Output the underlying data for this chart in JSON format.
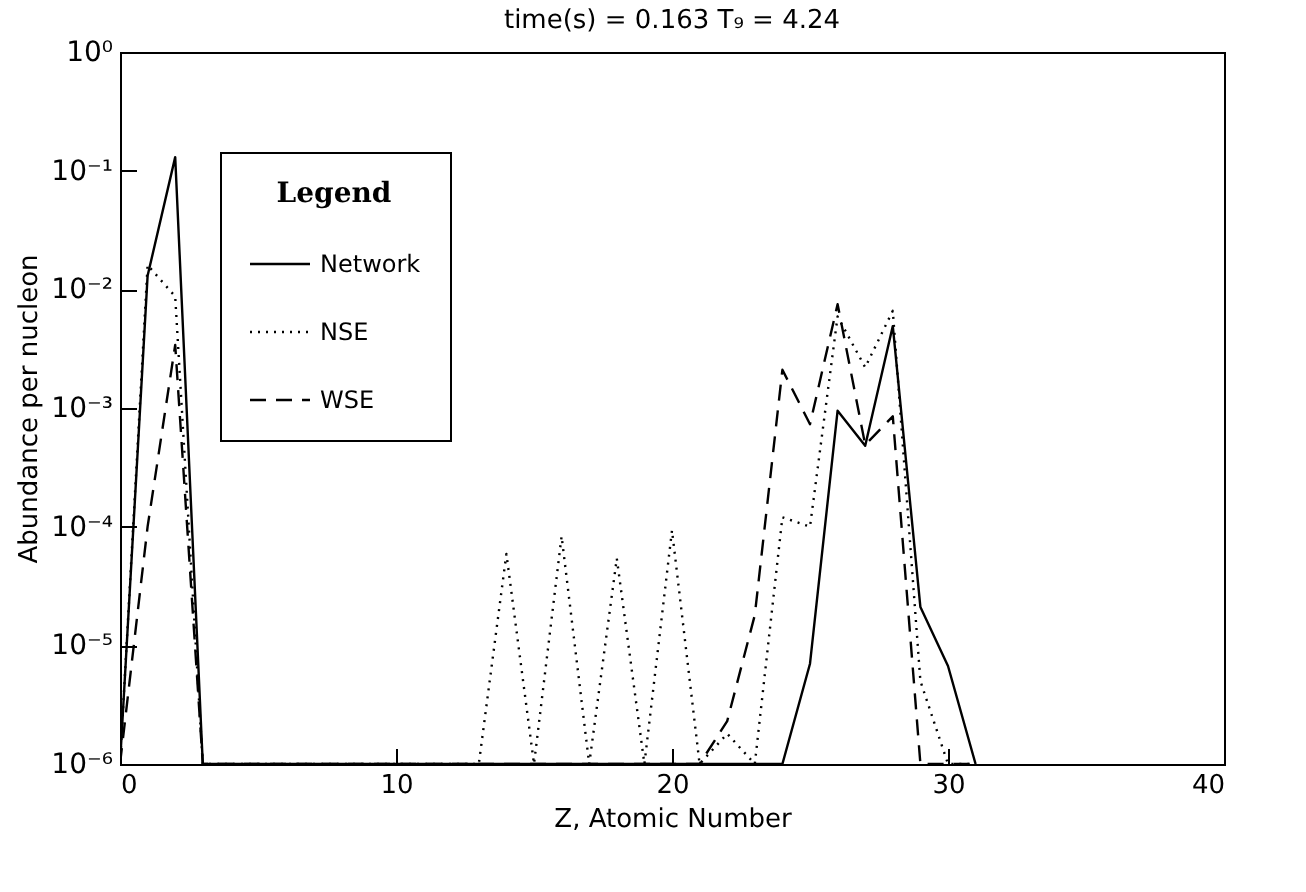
{
  "chart_data": {
    "type": "line",
    "title": "time(s) = 0.163    T₉ = 4.24",
    "xlabel": "Z, Atomic Number",
    "ylabel": "Abundance per nucleon",
    "legend_title": "Legend",
    "legend": "top left",
    "log": "y",
    "x": [
      0,
      1,
      2,
      3,
      4,
      5,
      6,
      7,
      8,
      9,
      10,
      11,
      12,
      13,
      14,
      15,
      16,
      17,
      18,
      19,
      20,
      21,
      22,
      23,
      24,
      25,
      26,
      27,
      28,
      29,
      30,
      31
    ],
    "xlim": [
      0,
      40
    ],
    "xticks": [
      0,
      10,
      20,
      30,
      40
    ],
    "ylim": [
      1e-06,
      1
    ],
    "yticks": [
      {
        "value": 1,
        "label": "10⁰"
      },
      {
        "value": 0.1,
        "label": "10⁻¹"
      },
      {
        "value": 0.01,
        "label": "10⁻²"
      },
      {
        "value": 0.001,
        "label": "10⁻³"
      },
      {
        "value": 0.0001,
        "label": "10⁻⁴"
      },
      {
        "value": 1e-05,
        "label": "10⁻⁵"
      },
      {
        "value": 1e-06,
        "label": "10⁻⁶"
      }
    ],
    "series": [
      {
        "name": "Network",
        "color": "#000000",
        "line_style": "solid",
        "values": [
          1e-06,
          0.013,
          0.13,
          1e-06,
          1e-06,
          1e-06,
          1e-06,
          1e-06,
          1e-06,
          1e-06,
          1e-06,
          1e-06,
          1e-06,
          1e-06,
          1e-06,
          1e-06,
          1e-06,
          1e-06,
          1e-06,
          1e-06,
          1e-06,
          1e-06,
          1e-06,
          1e-06,
          1e-06,
          7e-06,
          0.00095,
          0.00048,
          0.0049,
          2.1e-05,
          6.7e-06,
          1e-06
        ]
      },
      {
        "name": "NSE",
        "color": "#000000",
        "line_style": "dotted",
        "values": [
          1e-06,
          0.016,
          0.0087,
          1e-06,
          1e-06,
          1e-06,
          1e-06,
          1e-06,
          1e-06,
          1e-06,
          1e-06,
          1e-06,
          1e-06,
          1e-06,
          5.9e-05,
          1e-06,
          8.3e-05,
          1e-06,
          5.4e-05,
          1e-06,
          9.3e-05,
          1e-06,
          1.8e-06,
          1e-06,
          0.00012,
          0.0001,
          0.0059,
          0.0022,
          0.0066,
          5e-06,
          1e-06,
          1e-06
        ]
      },
      {
        "name": "WSE",
        "color": "#000000",
        "line_style": "dashed",
        "values": [
          1e-06,
          0.0001,
          0.0034,
          1e-06,
          1e-06,
          1e-06,
          1e-06,
          1e-06,
          1e-06,
          1e-06,
          1e-06,
          1e-06,
          1e-06,
          1e-06,
          1e-06,
          1e-06,
          1e-06,
          1e-06,
          1e-06,
          1e-06,
          1e-06,
          1e-06,
          2.3e-06,
          1.8e-05,
          0.0021,
          0.00073,
          0.0075,
          0.00049,
          0.00085,
          1e-06,
          1e-06,
          1e-06
        ]
      }
    ]
  }
}
